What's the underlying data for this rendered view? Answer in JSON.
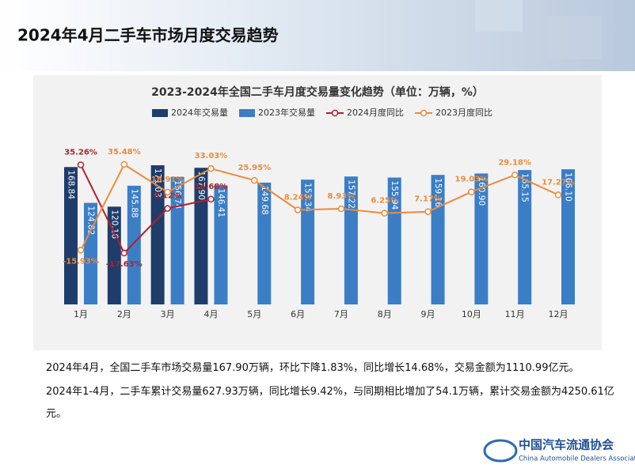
{
  "header": {
    "title": "2024年4月二手车市场月度交易趋势"
  },
  "chart_data": {
    "type": "bar",
    "title": "2023-2024年全国二手车月度交易量变化趋势（单位：万辆，%）",
    "categories": [
      "1月",
      "2月",
      "3月",
      "4月",
      "5月",
      "6月",
      "7月",
      "8月",
      "9月",
      "10月",
      "11月",
      "12月"
    ],
    "series": [
      {
        "name": "2024年交易量",
        "type": "bar",
        "color": "#1f3d6b",
        "values": [
          168.84,
          120.16,
          171.03,
          167.9,
          null,
          null,
          null,
          null,
          null,
          null,
          null,
          null
        ],
        "value_labels": [
          "168.84",
          "120.16",
          "171.03",
          "167.90",
          null,
          null,
          null,
          null,
          null,
          null,
          null,
          null
        ]
      },
      {
        "name": "2023年交易量",
        "type": "bar",
        "color": "#3b7ec6",
        "values": [
          124.82,
          145.88,
          156.74,
          146.41,
          149.68,
          153.34,
          157.22,
          155.94,
          159.16,
          160.9,
          165.15,
          166.1
        ],
        "value_labels": [
          "124.82",
          "145.88",
          "156.74",
          "146.41",
          "149.68",
          "153.34",
          "157.22",
          "155.94",
          "159.16",
          "160.90",
          "165.15",
          "166.10"
        ]
      },
      {
        "name": "2024月度同比",
        "type": "line",
        "color": "#b3202a",
        "values": [
          35.26,
          -17.63,
          9.12,
          14.68,
          null,
          null,
          null,
          null,
          null,
          null,
          null,
          null
        ],
        "value_labels": [
          "35.26%",
          "-17.63%",
          "9.12%",
          "14.68%",
          null,
          null,
          null,
          null,
          null,
          null,
          null,
          null
        ]
      },
      {
        "name": "2023月度同比",
        "type": "line",
        "color": "#ed8a3a",
        "values": [
          -15.93,
          35.48,
          18.91,
          33.03,
          25.95,
          8.24,
          8.93,
          6.25,
          7.17,
          19.03,
          29.18,
          17.27
        ],
        "value_labels": [
          "-15.93%",
          "35.48%",
          "18.91%",
          "33.03%",
          "25.95%",
          "8.24%",
          "8.93%",
          "6.25%",
          "7.17%",
          "19.03%",
          "29.18%",
          "17.27%"
        ]
      }
    ]
  },
  "paragraphs": [
    "2024年4月，全国二手车市场交易量167.90万辆，环比下降1.83%，同比增长14.68%，交易金额为1110.99亿元。",
    "2024年1-4月，二手车累计交易量627.93万辆，同比增长9.42%，与同期相比增加了54.1万辆，累计交易金额为4250.61亿元。"
  ],
  "logo": {
    "name": "中国汽车流通协会",
    "english": "China Automobile Dealers Association"
  }
}
